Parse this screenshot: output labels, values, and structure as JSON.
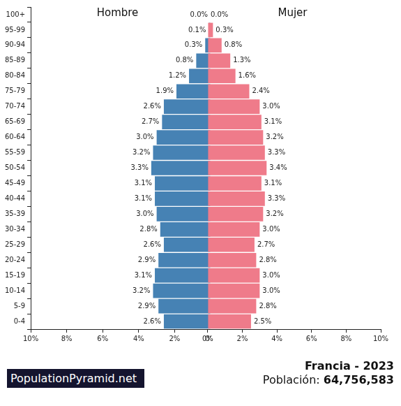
{
  "chart_data": [
    {
      "type": "bar",
      "orientation": "horizontal",
      "title": "Hombre",
      "color": "#4682b4",
      "categories": [
        "100+",
        "95-99",
        "90-94",
        "85-89",
        "80-84",
        "75-79",
        "70-74",
        "65-69",
        "60-64",
        "55-59",
        "50-54",
        "45-49",
        "40-44",
        "35-39",
        "30-34",
        "25-29",
        "20-24",
        "15-19",
        "10-14",
        "5-9",
        "0-4"
      ],
      "values": [
        0.0,
        0.1,
        0.3,
        0.8,
        1.2,
        1.9,
        2.6,
        2.7,
        3.0,
        3.2,
        3.3,
        3.1,
        3.1,
        3.0,
        2.8,
        2.6,
        2.9,
        3.1,
        3.2,
        2.9,
        2.6
      ],
      "value_labels": [
        "0.0%",
        "0.1%",
        "0.3%",
        "0.8%",
        "1.2%",
        "1.9%",
        "2.6%",
        "2.7%",
        "3.0%",
        "3.2%",
        "3.3%",
        "3.1%",
        "3.1%",
        "3.0%",
        "2.8%",
        "2.6%",
        "2.9%",
        "3.1%",
        "3.2%",
        "2.9%",
        "2.6%"
      ],
      "data_labels": true,
      "grid": false,
      "xlim": [
        0,
        10
      ],
      "xticks": [
        {
          "value": 0,
          "label": "0%"
        },
        {
          "value": 2,
          "label": "2%"
        },
        {
          "value": 4,
          "label": "4%"
        },
        {
          "value": 6,
          "label": "6%"
        },
        {
          "value": 8,
          "label": "8%"
        },
        {
          "value": 10,
          "label": "10%"
        }
      ]
    },
    {
      "type": "bar",
      "orientation": "horizontal",
      "title": "Mujer",
      "color": "#ef7b8a",
      "categories": [
        "100+",
        "95-99",
        "90-94",
        "85-89",
        "80-84",
        "75-79",
        "70-74",
        "65-69",
        "60-64",
        "55-59",
        "50-54",
        "45-49",
        "40-44",
        "35-39",
        "30-34",
        "25-29",
        "20-24",
        "15-19",
        "10-14",
        "5-9",
        "0-4"
      ],
      "values": [
        0.0,
        0.3,
        0.8,
        1.3,
        1.6,
        2.4,
        3.0,
        3.1,
        3.2,
        3.3,
        3.4,
        3.1,
        3.3,
        3.2,
        3.0,
        2.7,
        2.8,
        3.0,
        3.0,
        2.8,
        2.5
      ],
      "value_labels": [
        "0.0%",
        "0.3%",
        "0.8%",
        "1.3%",
        "1.6%",
        "2.4%",
        "3.0%",
        "3.1%",
        "3.2%",
        "3.3%",
        "3.4%",
        "3.1%",
        "3.3%",
        "3.2%",
        "3.0%",
        "2.7%",
        "2.8%",
        "3.0%",
        "3.0%",
        "2.8%",
        "2.5%"
      ],
      "data_labels": true,
      "grid": false,
      "tick_labels": "x",
      "xlim": [
        0,
        10
      ],
      "xticks": [
        {
          "value": 0,
          "label": "0%"
        },
        {
          "value": 2,
          "label": "2%"
        },
        {
          "value": 4,
          "label": "4%"
        },
        {
          "value": 6,
          "label": "6%"
        },
        {
          "value": 8,
          "label": "8%"
        },
        {
          "value": 10,
          "label": "10%"
        }
      ]
    }
  ],
  "footer": {
    "site": "PopulationPyramid.net",
    "title": "Francia - 2023",
    "population_label": "Población:",
    "population": "64,756,583"
  }
}
